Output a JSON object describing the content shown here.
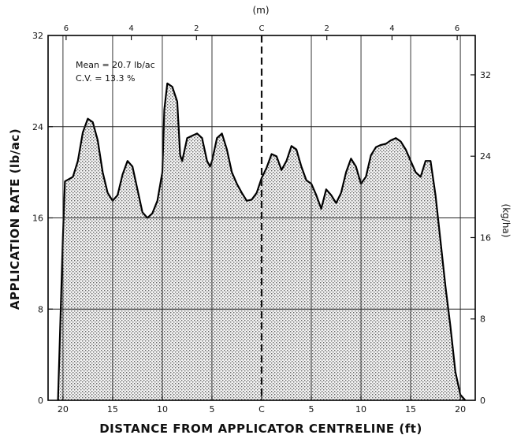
{
  "chart_data": {
    "type": "area",
    "title": "",
    "xlabel": "DISTANCE FROM APPLICATOR CENTRELINE (ft)",
    "ylabel": "APPLICATION RATE (lb/ac)",
    "y2label": "(kg/ha)",
    "x2label": "(m)",
    "xlim": [
      -21.5,
      21.5
    ],
    "ylim": [
      0,
      32
    ],
    "y2lim": [
      0,
      35.87
    ],
    "grid": true,
    "x_ticks": [
      -20,
      -15,
      -10,
      -5,
      0,
      5,
      10,
      15,
      20
    ],
    "x_tick_labels": [
      "20",
      "15",
      "10",
      "5",
      "C",
      "5",
      "10",
      "15",
      "20"
    ],
    "y_ticks": [
      0,
      8,
      16,
      24,
      32
    ],
    "y_tick_labels": [
      "0",
      "8",
      "16",
      "24",
      "32"
    ],
    "y2_ticks": [
      0,
      8,
      16,
      24,
      32
    ],
    "y2_tick_labels": [
      "0",
      "8",
      "16",
      "24",
      "32"
    ],
    "x2_ticks": [
      -6,
      -4,
      -2,
      0,
      2,
      4,
      6
    ],
    "x2_tick_labels": [
      "6",
      "4",
      "2",
      "C",
      "2",
      "4",
      "6"
    ],
    "annotations": [
      "Mean = 20.7 lb/ac",
      "C.V. = 13.3 %"
    ],
    "series": [
      {
        "values_x": [
          -20.5,
          -20.0,
          -19.8,
          -19.0,
          -18.5,
          -18.0,
          -17.5,
          -17.0,
          -16.5,
          -16.0,
          -15.5,
          -15.0,
          -14.5,
          -14.0,
          -13.5,
          -13.0,
          -12.5,
          -12.0,
          -11.5,
          -11.0,
          -10.5,
          -10.0,
          -9.8,
          -9.5,
          -9.0,
          -8.5,
          -8.2,
          -8.0,
          -7.5,
          -7.0,
          -6.5,
          -6.0,
          -5.5,
          -5.2,
          -5.0,
          -4.5,
          -4.0,
          -3.5,
          -3.0,
          -2.5,
          -2.0,
          -1.5,
          -1.0,
          -0.5,
          0.0,
          0.5,
          1.0,
          1.5,
          2.0,
          2.5,
          3.0,
          3.5,
          4.0,
          4.5,
          5.0,
          5.5,
          6.0,
          6.5,
          7.0,
          7.5,
          8.0,
          8.5,
          9.0,
          9.5,
          10.0,
          10.5,
          11.0,
          11.5,
          12.0,
          12.5,
          13.0,
          13.5,
          14.0,
          14.5,
          15.0,
          15.5,
          16.0,
          16.5,
          17.0,
          17.5,
          18.0,
          18.5,
          19.0,
          19.5,
          20.0,
          20.5
        ],
        "values": [
          0.0,
          14.5,
          19.2,
          19.6,
          21.0,
          23.5,
          24.7,
          24.4,
          22.8,
          20.0,
          18.2,
          17.5,
          18.0,
          19.8,
          21.0,
          20.5,
          18.5,
          16.5,
          16.0,
          16.4,
          17.5,
          20.0,
          25.5,
          27.8,
          27.5,
          26.2,
          21.5,
          21.0,
          23.0,
          23.2,
          23.4,
          23.0,
          21.0,
          20.5,
          21.0,
          23.0,
          23.4,
          22.0,
          20.0,
          19.0,
          18.2,
          17.5,
          17.6,
          18.2,
          19.5,
          20.4,
          21.6,
          21.4,
          20.2,
          21.0,
          22.3,
          22.0,
          20.5,
          19.3,
          19.0,
          18.0,
          16.8,
          18.5,
          18.0,
          17.3,
          18.2,
          20.0,
          21.2,
          20.5,
          19.0,
          19.6,
          21.5,
          22.2,
          22.4,
          22.5,
          22.8,
          23.0,
          22.7,
          22.0,
          21.0,
          20.0,
          19.6,
          21.0,
          21.0,
          18.0,
          14.0,
          10.0,
          6.5,
          2.5,
          0.5,
          0.0
        ]
      }
    ]
  }
}
